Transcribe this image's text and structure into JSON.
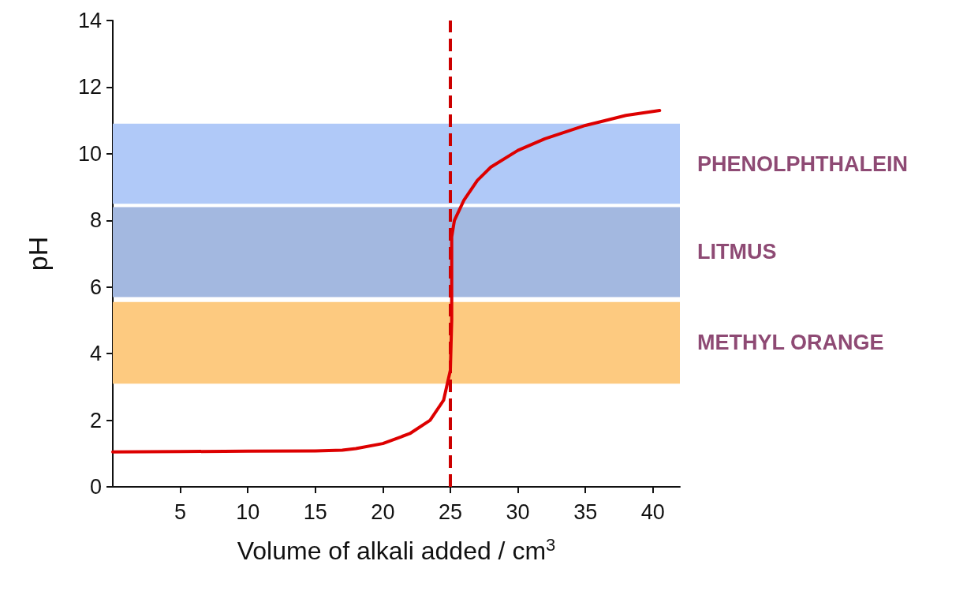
{
  "chart_data": {
    "type": "line",
    "xlabel": "Volume of alkali added / cm$^{3}$",
    "ylabel": "pH",
    "xlim": [
      0,
      42
    ],
    "xticks": [
      5,
      10,
      15,
      20,
      25,
      30,
      35,
      40
    ],
    "ylim": [
      0,
      14
    ],
    "yticks": [
      0,
      2,
      4,
      6,
      8,
      10,
      12,
      14
    ],
    "marker": "none",
    "line_style": "solid",
    "series": [
      {
        "color": "#dd0000",
        "x": [
          0,
          5,
          10,
          15,
          17,
          18,
          20,
          22,
          23.5,
          24.5,
          25,
          25.1,
          25.1,
          25.3,
          26,
          27,
          28,
          30,
          32,
          35,
          38,
          40.5
        ],
        "values": [
          1.05,
          1.06,
          1.07,
          1.08,
          1.1,
          1.15,
          1.3,
          1.6,
          2.0,
          2.6,
          3.5,
          5,
          7.5,
          8,
          8.6,
          9.2,
          9.6,
          10.1,
          10.45,
          10.85,
          11.15,
          11.3
        ]
      }
    ],
    "bands": [
      {
        "axis": "y",
        "from": 8.5,
        "to": 10.9,
        "label": "PHENOLPHTHALEIN",
        "color": "#b0c9f8"
      },
      {
        "axis": "y",
        "from": 5.7,
        "to": 8.4,
        "label": "LITMUS",
        "color": "#a3b8e0"
      },
      {
        "axis": "y",
        "from": 3.1,
        "to": 5.55,
        "label": "METHYL ORANGE",
        "color": "#fdca80"
      }
    ],
    "ref_lines": [
      {
        "axis": "x",
        "value": 25,
        "color": "#cc0000",
        "line_style": "dashed"
      }
    ]
  }
}
